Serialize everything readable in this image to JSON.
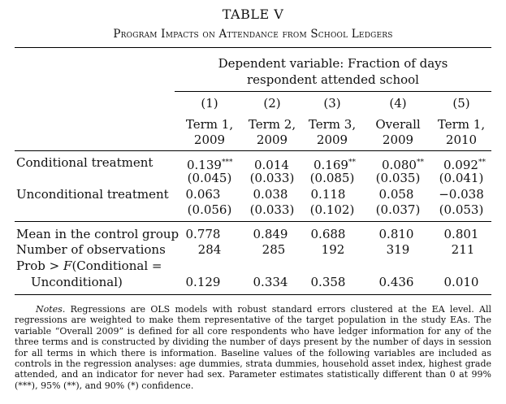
{
  "title": "TABLE V",
  "subtitle": "Program Impacts on Attendance from School Ledgers",
  "dependent_variable_line1": "Dependent variable: Fraction of days",
  "dependent_variable_line2": "respondent attended school",
  "columns": [
    {
      "num": "(1)",
      "line1": "Term 1,",
      "line2": "2009"
    },
    {
      "num": "(2)",
      "line1": "Term 2,",
      "line2": "2009"
    },
    {
      "num": "(3)",
      "line1": "Term 3,",
      "line2": "2009"
    },
    {
      "num": "(4)",
      "line1": "Overall",
      "line2": "2009"
    },
    {
      "num": "(5)",
      "line1": "Term 1,",
      "line2": "2010"
    }
  ],
  "rows": {
    "conditional": {
      "label": "Conditional treatment",
      "coef": [
        "0.139",
        "0.014",
        "0.169",
        "0.080",
        "0.092"
      ],
      "stars": [
        "***",
        "",
        "**",
        "**",
        "**"
      ],
      "se": [
        "(0.045)",
        "(0.033)",
        "(0.085)",
        "(0.035)",
        "(0.041)"
      ]
    },
    "unconditional": {
      "label": "Unconditional treatment",
      "coef": [
        "0.063",
        "0.038",
        "0.118",
        "0.058",
        "−0.038"
      ],
      "se": [
        "(0.056)",
        "(0.033)",
        "(0.102)",
        "(0.037)",
        "(0.053)"
      ]
    },
    "mean_control": {
      "label": "Mean in the control group",
      "values": [
        "0.778",
        "0.849",
        "0.688",
        "0.810",
        "0.801"
      ]
    },
    "observations": {
      "label": "Number of observations",
      "values": [
        "284",
        "285",
        "192",
        "319",
        "211"
      ]
    },
    "prob_f": {
      "label_line1_pre": "Prob > ",
      "label_line1_f": "F",
      "label_line1_post": "(Conditional =",
      "label_line2": "Unconditional)",
      "values": [
        "0.129",
        "0.334",
        "0.358",
        "0.436",
        "0.010"
      ]
    }
  },
  "notes": {
    "lead": "Notes.",
    "text": " Regressions are OLS models with robust standard errors clustered at the EA level. All regressions are weighted to make them representative of the target population in the study EAs. The variable “Overall 2009” is defined for all core respondents who have ledger information for any of the three terms and is constructed by dividing the number of days present by the number of days in session for all terms in which there is information. Baseline values of the following variables are included as controls in the regression analyses: age dummies, strata dummies, household asset index, highest grade attended, and an indicator for never had sex. Parameter estimates statistically different than 0 at 99% (***), 95% (**), and 90% (*) confidence."
  }
}
